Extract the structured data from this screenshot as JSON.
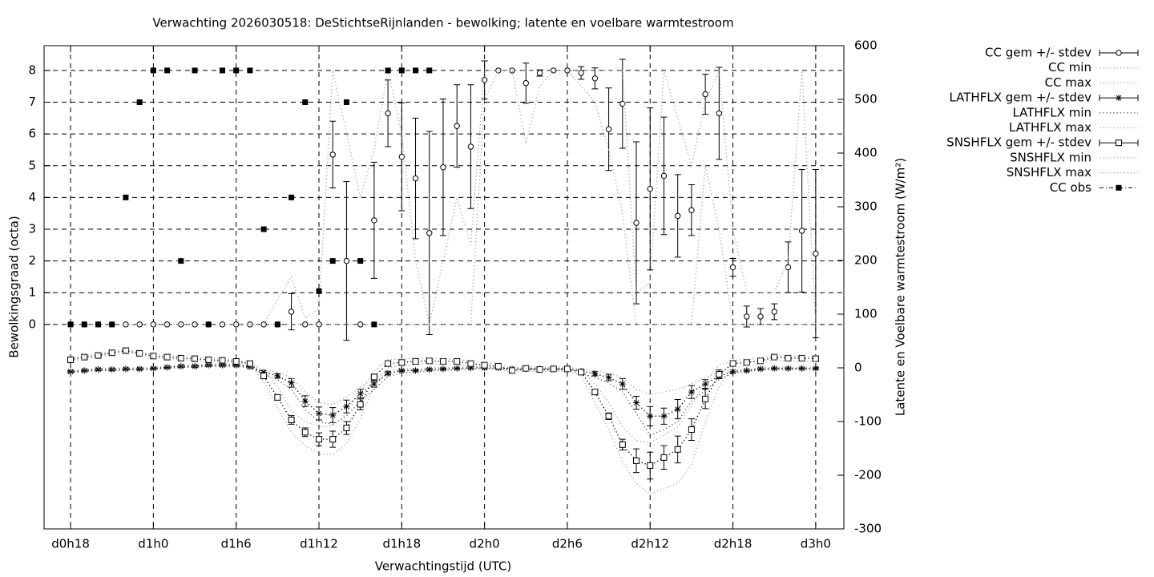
{
  "chart_data": {
    "type": "errorbar",
    "title": "Verwachting 2026030518: DeStichtseRijnlanden - bewolking; latente en voelbare warmtestroom",
    "xlabel": "Verwachtingstijd (UTC)",
    "ylabel": "Bewolkingsgraad (octa)",
    "y2label": "Latente en Voelbare warmtestroom (W/m²)",
    "grid": true,
    "x": [
      0,
      1,
      2,
      3,
      4,
      5,
      6,
      7,
      8,
      9,
      10,
      11,
      12,
      13,
      14,
      15,
      16,
      17,
      18,
      19,
      20,
      21,
      22,
      23,
      24,
      25,
      26,
      27,
      28,
      29,
      30,
      31,
      32,
      33,
      34,
      35,
      36,
      37,
      38,
      39,
      40,
      41,
      42,
      43,
      44,
      45,
      46,
      47,
      48,
      49,
      50,
      51,
      52,
      53,
      54
    ],
    "xlim": [
      -1.92,
      56.04
    ],
    "xticks": [
      {
        "value": 0,
        "label": "d0h18"
      },
      {
        "value": 6,
        "label": "d1h0"
      },
      {
        "value": 12,
        "label": "d1h6"
      },
      {
        "value": 18,
        "label": "d1h12"
      },
      {
        "value": 24,
        "label": "d1h18"
      },
      {
        "value": 30,
        "label": "d2h0"
      },
      {
        "value": 36,
        "label": "d2h6"
      },
      {
        "value": 42,
        "label": "d2h12"
      },
      {
        "value": 48,
        "label": "d2h18"
      },
      {
        "value": 54,
        "label": "d3h0"
      }
    ],
    "ylim": [
      -6.44,
      8.78
    ],
    "yticks": [
      0,
      1,
      2,
      3,
      4,
      5,
      6,
      7,
      8
    ],
    "y2lim": [
      -300,
      600
    ],
    "y2ticks": [
      -300,
      -200,
      -100,
      0,
      100,
      200,
      300,
      400,
      500,
      600
    ],
    "series": [
      {
        "name": "CC gem +/- stdev",
        "color": "#000000",
        "marker": "circle",
        "line": null,
        "values": [
          0,
          0,
          0,
          0,
          0,
          0,
          0,
          0,
          0,
          0,
          0,
          0,
          0,
          0,
          0,
          0,
          0.4,
          0,
          0,
          5.35,
          2,
          0,
          3.28,
          6.65,
          5.28,
          4.6,
          2.88,
          4.95,
          6.25,
          5.6,
          7.7,
          8,
          8,
          7.6,
          7.92,
          8,
          8,
          7.92,
          7.75,
          6.15,
          6.95,
          3.2,
          4.27,
          4.68,
          3.42,
          3.6,
          7.25,
          6.65,
          1.8,
          0.25,
          0.25,
          0.4,
          1.8,
          2.95,
          2.23
        ],
        "errors": [
          0,
          0,
          0,
          0,
          0,
          0,
          0,
          0,
          0,
          0,
          0,
          0,
          0,
          0,
          0,
          0,
          0.57,
          0,
          0,
          1.05,
          2.5,
          0,
          1.83,
          1.05,
          1.7,
          1.9,
          3.2,
          2.15,
          1.3,
          1.95,
          0.6,
          0,
          0,
          0.63,
          0.1,
          0,
          0,
          0.2,
          0.33,
          1.3,
          1.4,
          2.55,
          2.55,
          1.85,
          1.3,
          0.8,
          0.63,
          1.45,
          0.28,
          0.33,
          0.25,
          0.25,
          0.8,
          1.93,
          2.65
        ]
      },
      {
        "name": "CC min",
        "color": "#aaaaaa",
        "marker": null,
        "line": "dotted",
        "values": [
          0,
          0,
          0,
          0,
          0,
          0,
          0,
          0,
          0,
          0,
          0,
          0,
          0,
          0,
          0,
          0,
          0,
          0,
          0,
          0,
          0,
          0,
          0,
          0,
          0,
          0,
          0,
          0,
          0,
          0,
          7.1,
          8,
          8,
          5.7,
          7.5,
          8,
          8,
          7.5,
          7,
          5.5,
          3.5,
          0,
          0,
          0,
          0,
          0,
          5,
          3,
          0,
          0,
          0,
          0,
          0,
          0,
          0
        ]
      },
      {
        "name": "CC max",
        "color": "#aaaaaa",
        "marker": null,
        "line": "dotted",
        "values": [
          0,
          0,
          0,
          0,
          0,
          0,
          0,
          0,
          0,
          0,
          0,
          0,
          0,
          0,
          0,
          0.8,
          1.5,
          0.2,
          0.5,
          8,
          6,
          4,
          5.5,
          8,
          6,
          2,
          0,
          2,
          4,
          2.5,
          8,
          8,
          8,
          8,
          8,
          8,
          8,
          8,
          8,
          8,
          8,
          1,
          1.3,
          8,
          6.5,
          5,
          7,
          8,
          3,
          1,
          1,
          1,
          2,
          8,
          0
        ]
      },
      {
        "name": "LATHFLX gem +/- stdev",
        "color": "#000000",
        "axis": "y2",
        "marker": "star",
        "line": "dotted",
        "values": [
          -7,
          -5,
          -3,
          -3,
          -2,
          -2,
          -1,
          1,
          3,
          3,
          5,
          5,
          5,
          2,
          -8,
          -15,
          -28,
          -62,
          -85,
          -88,
          -72,
          -48,
          -30,
          -10,
          -5,
          -5,
          -3,
          -2,
          -1,
          0,
          0,
          0,
          -2,
          -2,
          -2,
          -2,
          -2,
          -6,
          -11,
          -18,
          -30,
          -65,
          -90,
          -90,
          -77,
          -45,
          -30,
          -15,
          -7,
          -5,
          -2,
          -1,
          -1,
          -1,
          -1
        ],
        "errors": [
          2,
          2,
          2,
          2,
          2,
          2,
          2,
          2,
          2,
          2,
          2,
          2,
          2,
          2,
          3,
          4,
          8,
          10,
          12,
          14,
          12,
          8,
          6,
          3,
          2,
          2,
          2,
          2,
          2,
          2,
          2,
          2,
          2,
          2,
          2,
          2,
          2,
          3,
          4,
          6,
          10,
          12,
          18,
          15,
          18,
          12,
          8,
          5,
          3,
          2,
          2,
          2,
          2,
          2,
          2
        ]
      },
      {
        "name": "LATHFLX min",
        "color": "#555555",
        "axis": "y2",
        "marker": null,
        "line": "dotted",
        "values": [
          -9,
          -7,
          -5,
          -5,
          -4,
          -4,
          -3,
          -1,
          1,
          1,
          3,
          3,
          3,
          0,
          -12,
          -22,
          -40,
          -78,
          -100,
          -105,
          -90,
          -62,
          -40,
          -16,
          -9,
          -8,
          -6,
          -5,
          -3,
          -2,
          -2,
          -2,
          -4,
          -4,
          -4,
          -4,
          -4,
          -10,
          -18,
          -28,
          -45,
          -85,
          -125,
          -115,
          -100,
          -62,
          -42,
          -22,
          -10,
          -7,
          -4,
          -3,
          -3,
          -3,
          -3
        ]
      },
      {
        "name": "LATHFLX max",
        "color": "#aaaaaa",
        "axis": "y2",
        "marker": null,
        "line": "dotted",
        "values": [
          -5,
          -3,
          -1,
          -1,
          0,
          0,
          1,
          3,
          5,
          5,
          7,
          7,
          7,
          4,
          -4,
          -8,
          -18,
          -45,
          -65,
          -68,
          -55,
          -35,
          -20,
          -5,
          -2,
          -2,
          0,
          1,
          1,
          2,
          2,
          2,
          0,
          0,
          0,
          0,
          0,
          -3,
          -5,
          -10,
          -18,
          -40,
          -50,
          -45,
          -40,
          -30,
          -18,
          -8,
          -4,
          -3,
          0,
          1,
          1,
          1,
          1
        ]
      },
      {
        "name": "SNSHFLX gem +/- stdev",
        "color": "#000000",
        "axis": "y2",
        "marker": "square-open",
        "line": "dotted",
        "values": [
          15,
          20,
          23,
          28,
          32,
          27,
          22,
          20,
          18,
          17,
          15,
          14,
          12,
          8,
          -15,
          -55,
          -97,
          -120,
          -133,
          -133,
          -112,
          -68,
          -17,
          8,
          10,
          12,
          13,
          12,
          12,
          8,
          5,
          3,
          -5,
          -1,
          -3,
          -2,
          -2,
          -8,
          -45,
          -90,
          -143,
          -173,
          -182,
          -167,
          -152,
          -115,
          -58,
          -12,
          8,
          10,
          13,
          20,
          18,
          18,
          17
        ],
        "errors": [
          3,
          3,
          3,
          3,
          3,
          3,
          3,
          3,
          3,
          3,
          3,
          3,
          3,
          3,
          3,
          5,
          8,
          8,
          12,
          15,
          12,
          10,
          4,
          3,
          5,
          3,
          3,
          3,
          3,
          3,
          3,
          3,
          3,
          3,
          3,
          3,
          3,
          3,
          4,
          6,
          10,
          22,
          25,
          22,
          25,
          20,
          18,
          8,
          5,
          3,
          3,
          3,
          3,
          3,
          3
        ]
      },
      {
        "name": "SNSHFLX min",
        "color": "#aaaaaa",
        "axis": "y2",
        "marker": null,
        "line": "dotted",
        "values": [
          12,
          17,
          20,
          25,
          29,
          24,
          19,
          17,
          15,
          14,
          12,
          11,
          9,
          5,
          -25,
          -75,
          -120,
          -145,
          -160,
          -162,
          -140,
          -95,
          -35,
          0,
          4,
          6,
          8,
          6,
          6,
          3,
          0,
          -2,
          -9,
          -5,
          -7,
          -6,
          -6,
          -15,
          -65,
          -115,
          -175,
          -215,
          -235,
          -225,
          -215,
          -180,
          -100,
          -35,
          2,
          4,
          8,
          15,
          12,
          12,
          12
        ]
      },
      {
        "name": "SNSHFLX max",
        "color": "#aaaaaa",
        "axis": "y2",
        "marker": null,
        "line": "dotted",
        "values": [
          18,
          23,
          26,
          31,
          35,
          30,
          25,
          23,
          21,
          20,
          18,
          17,
          15,
          11,
          -5,
          -35,
          -80,
          -100,
          -110,
          -108,
          -85,
          -45,
          -5,
          15,
          17,
          18,
          18,
          17,
          16,
          12,
          9,
          7,
          -1,
          3,
          1,
          2,
          2,
          -3,
          -30,
          -65,
          -110,
          -135,
          -140,
          -125,
          -110,
          -70,
          -25,
          5,
          14,
          15,
          18,
          24,
          22,
          22,
          21
        ]
      },
      {
        "name": "CC obs",
        "color": "#000000",
        "marker": "square-filled",
        "line": null,
        "values": [
          0,
          0,
          0,
          0,
          4,
          7,
          8,
          8,
          2,
          8,
          0,
          8,
          8,
          8,
          3,
          0,
          4,
          7,
          1.05,
          2,
          7,
          2,
          0,
          8,
          8,
          8,
          8,
          null,
          null,
          null,
          null,
          null,
          null,
          null,
          null,
          null,
          null,
          null,
          null,
          null,
          null,
          null,
          null,
          null,
          null,
          null,
          null,
          null,
          null,
          null,
          null,
          null,
          null,
          null,
          null
        ]
      }
    ]
  }
}
